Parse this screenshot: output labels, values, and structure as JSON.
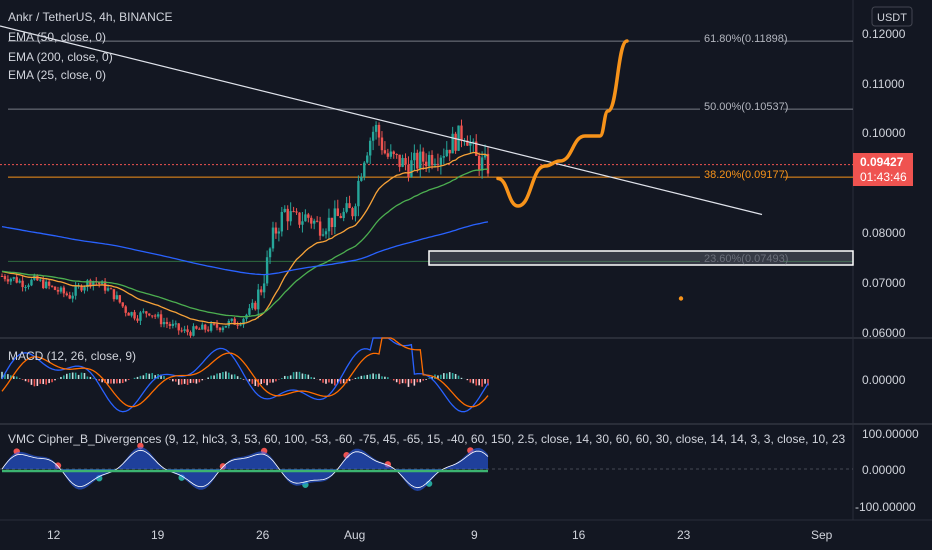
{
  "header": {
    "symbol_line": "Ankr / TetherUS, 4h, BINANCE",
    "ema_lines": [
      "EMA (50, close, 0)",
      "EMA (200, close, 0)",
      "EMA (25, close, 0)"
    ]
  },
  "price_axis": {
    "currency": "USDT",
    "ticks": [
      "0.12000",
      "0.11000",
      "0.10000",
      "0.08000",
      "0.07000",
      "0.06000"
    ],
    "current_price": "0.09427",
    "countdown": "01:43:46"
  },
  "fib_levels": [
    {
      "label": "61.80%(0.11898)",
      "value": 0.11898
    },
    {
      "label": "50.00%(0.10537)",
      "value": 0.10537
    },
    {
      "label": "38.20%(0.09177)",
      "value": 0.09177
    },
    {
      "label": "23.60%(0.07493)",
      "value": 0.07493
    }
  ],
  "macd": {
    "label": "MACD (12, 26, close, 9)",
    "ticks": [
      "0.00000"
    ]
  },
  "vmc": {
    "label": "VMC Cipher_B_Divergences (9, 12, hlc3, 3, 53, 60, 100, -53, -60, -75, 45, -65, 15, -40, 60, 150, 2.5, close, 14, 30, 60, 60, 30, close, 14, 14, 3, 3, close, 10, 23",
    "ticks": [
      "100.00000",
      "0.00000",
      "-100.00000"
    ]
  },
  "time_axis": {
    "labels": [
      "12",
      "19",
      "26",
      "Aug",
      "9",
      "16",
      "23",
      "Sep"
    ]
  },
  "colors": {
    "background": "#131722",
    "up": "#26a69a",
    "down": "#ef5350",
    "ema50": "#4caf50",
    "ema200": "#2962ff",
    "ema25": "#f7a238",
    "projection": "#f7931a",
    "fib_38": "#f7931a"
  },
  "chart_data": {
    "type": "candlestick",
    "title": "Ankr / TetherUS, 4h, BINANCE",
    "ylabel": "USDT",
    "ylim": [
      0.0595,
      0.1215
    ],
    "grid": false,
    "close_path": [
      0.072,
      0.0715,
      0.0705,
      0.0712,
      0.07,
      0.069,
      0.068,
      0.07,
      0.0712,
      0.07,
      0.068,
      0.065,
      0.064,
      0.065,
      0.0632,
      0.062,
      0.0608,
      0.061,
      0.0615,
      0.0618,
      0.0625,
      0.063,
      0.065,
      0.07,
      0.08,
      0.085,
      0.083,
      0.084,
      0.082,
      0.083,
      0.084,
      0.085,
      0.096,
      0.102,
      0.096,
      0.095,
      0.094,
      0.095,
      0.096,
      0.097,
      0.099,
      0.101,
      0.095,
      0.094
    ],
    "ema": [
      {
        "name": "EMA 25",
        "start": 0.0735,
        "end": 0.093
      },
      {
        "name": "EMA 50",
        "start": 0.0725,
        "end": 0.0935
      },
      {
        "name": "EMA 200",
        "start": 0.0815,
        "end": 0.083
      }
    ],
    "trendline": {
      "from": 0.122,
      "to": 0.0843
    },
    "projection_path": [
      0.0915,
      0.086,
      0.094,
      0.095,
      0.1,
      0.1,
      0.105,
      0.119
    ],
    "support_zone": [
      0.0742,
      0.077
    ],
    "target_dot": 0.0675
  }
}
